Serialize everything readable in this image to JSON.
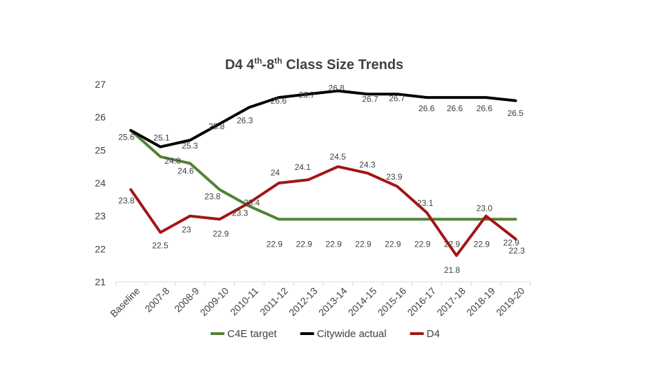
{
  "chart_data": {
    "type": "line",
    "title": {
      "prefix": "D4 4",
      "sup1": "th",
      "middle": "-8",
      "sup2": "th",
      "suffix": " Class Size Trends"
    },
    "categories": [
      "Baseline",
      "2007-8",
      "2008-9",
      "2009-10",
      "2010-11",
      "2011-12",
      "2012-13",
      "2013-14",
      "2014-15",
      "2015-16",
      "2016-17",
      "2017-18",
      "2018-19",
      "2019-20"
    ],
    "y_ticks": [
      "21",
      "22",
      "23",
      "24",
      "25",
      "26",
      "27"
    ],
    "ylim": [
      21,
      27
    ],
    "grid": false,
    "legend_position": "bottom",
    "series": [
      {
        "name": "C4E target",
        "color": "#538135",
        "values": [
          25.6,
          24.8,
          24.6,
          23.8,
          23.3,
          22.9,
          22.9,
          22.9,
          22.9,
          22.9,
          22.9,
          22.9,
          22.9,
          22.9
        ],
        "labels": [
          "25.6",
          "24.8",
          "24.6",
          "23.8",
          "23.3",
          "22.9",
          "22.9",
          "22.9",
          "22.9",
          "22.9",
          "22.9",
          "22.9",
          "22.9",
          "22.9"
        ]
      },
      {
        "name": "Citywide actual",
        "color": "#000000",
        "values": [
          25.6,
          25.1,
          25.3,
          25.8,
          26.3,
          26.6,
          26.7,
          26.8,
          26.7,
          26.7,
          26.6,
          26.6,
          26.6,
          26.5
        ],
        "labels": [
          "",
          "25.1",
          "25.3",
          "25.8",
          "26.3",
          "26.6",
          "26.7",
          "26.8",
          "26.7",
          "26.7",
          "26.6",
          "26.6",
          "26.6",
          "26.5"
        ]
      },
      {
        "name": "D4",
        "color": "#a31515",
        "values": [
          23.8,
          22.5,
          23.0,
          22.9,
          23.4,
          24.0,
          24.1,
          24.5,
          24.3,
          23.9,
          23.1,
          21.8,
          23.0,
          22.3
        ],
        "labels": [
          "23.8",
          "22.5",
          "23",
          "22.9",
          "23.4",
          "24",
          "24.1",
          "24.5",
          "24.3",
          "23.9",
          "23.1",
          "21.8",
          "23.0",
          "22.3"
        ]
      }
    ]
  }
}
